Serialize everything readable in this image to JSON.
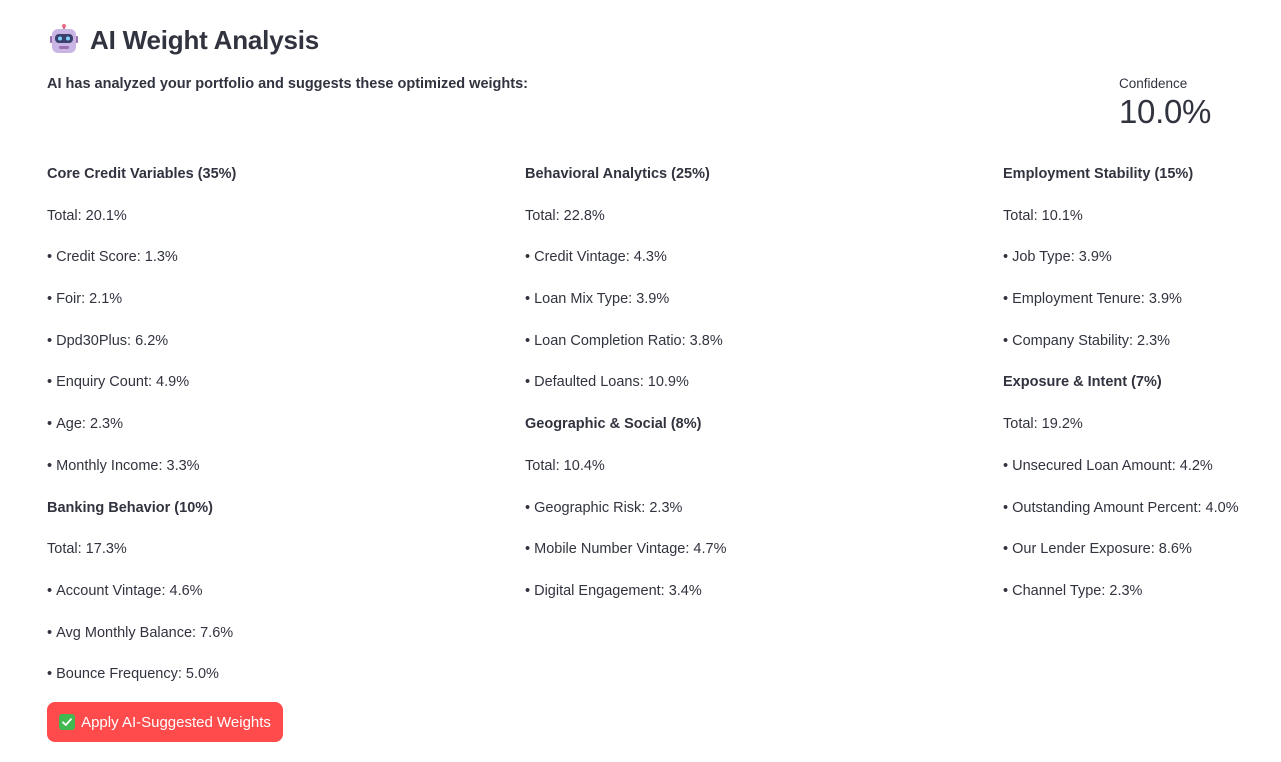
{
  "header": {
    "title": "AI Weight Analysis",
    "icon": "robot-icon"
  },
  "subtitle": "AI has analyzed your portfolio and suggests these optimized weights:",
  "confidence": {
    "label": "Confidence",
    "value": "10.0%"
  },
  "columns": [
    {
      "groups": [
        {
          "heading": "Core Credit Variables (35%)",
          "total": "Total: 20.1%",
          "items": [
            "Credit Score: 1.3%",
            "Foir: 2.1%",
            "Dpd30Plus: 6.2%",
            "Enquiry Count: 4.9%",
            "Age: 2.3%",
            "Monthly Income: 3.3%"
          ]
        },
        {
          "heading": "Banking Behavior (10%)",
          "total": "Total: 17.3%",
          "items": [
            "Account Vintage: 4.6%",
            "Avg Monthly Balance: 7.6%",
            "Bounce Frequency: 5.0%"
          ]
        }
      ]
    },
    {
      "groups": [
        {
          "heading": "Behavioral Analytics (25%)",
          "total": "Total: 22.8%",
          "items": [
            "Credit Vintage: 4.3%",
            "Loan Mix Type: 3.9%",
            "Loan Completion Ratio: 3.8%",
            "Defaulted Loans: 10.9%"
          ]
        },
        {
          "heading": "Geographic & Social (8%)",
          "total": "Total: 10.4%",
          "items": [
            "Geographic Risk: 2.3%",
            "Mobile Number Vintage: 4.7%",
            "Digital Engagement: 3.4%"
          ]
        }
      ]
    },
    {
      "groups": [
        {
          "heading": "Employment Stability (15%)",
          "total": "Total: 10.1%",
          "items": [
            "Job Type: 3.9%",
            "Employment Tenure: 3.9%",
            "Company Stability: 2.3%"
          ]
        },
        {
          "heading": "Exposure & Intent (7%)",
          "total": "Total: 19.2%",
          "items": [
            "Unsecured Loan Amount: 4.2%",
            "Outstanding Amount Percent: 4.0%",
            "Our Lender Exposure: 8.6%",
            "Channel Type: 2.3%"
          ]
        }
      ]
    }
  ],
  "apply_button": {
    "label": "Apply AI-Suggested Weights",
    "icon": "check-icon",
    "color": "#ff4b4b"
  }
}
